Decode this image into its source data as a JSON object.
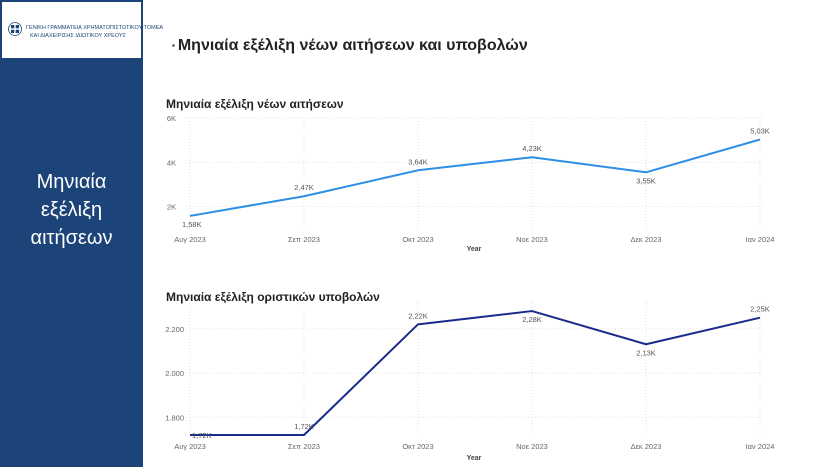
{
  "sidebar": {
    "logo_line1": "ΓΕΝΙΚΗ ΓΡΑΜΜΑΤΕΙΑ ΧΡΗΜΑΤΟΠΙΣΤΩΤΙΚΟΥ ΤΟΜΕΑ",
    "logo_line2": "ΚΑΙ ΔΙΑΧΕΙΡΙΣΗΣ ΙΔΙΩΤΙΚΟΥ ΧΡΕΟΥΣ",
    "title_lines": [
      "Μηνιαία",
      "εξέλιξη",
      "αιτήσεων"
    ],
    "bg_color": "#1d4478"
  },
  "page_title": "Μηνιαία εξέλιξη νέων αιτήσεων και υποβολών",
  "chart_data": [
    {
      "type": "line",
      "title": "Μηνιαία εξέλιξη νέων αιτήσεων",
      "xlabel": "Year",
      "ylabel": "",
      "categories": [
        "Αυγ 2023",
        "Σεπ 2023",
        "Οκτ 2023",
        "Νοε 2023",
        "Δεκ 2023",
        "Ιαν 2024"
      ],
      "values": [
        1580,
        2470,
        3640,
        4230,
        3550,
        5030
      ],
      "data_labels": [
        "1,58K",
        "2,47K",
        "3,64K",
        "4,23K",
        "3,55K",
        "5,03K"
      ],
      "ylim": [
        900,
        6000
      ],
      "yticks": [
        2000,
        4000,
        6000
      ],
      "ytick_labels": [
        "2K",
        "4K",
        "6K"
      ],
      "color": "#2e8ee6",
      "grid": true
    },
    {
      "type": "line",
      "title": "Μηνιαία εξέλιξη οριστικών υποβολών",
      "xlabel": "Year",
      "ylabel": "",
      "categories": [
        "Αυγ 2023",
        "Σεπ 2023",
        "Οκτ 2023",
        "Νοε 2023",
        "Δεκ 2023",
        "Ιαν 2024"
      ],
      "values": [
        1720,
        1720,
        2220,
        2280,
        2130,
        2250
      ],
      "data_labels": [
        "1,72K",
        "1,72K",
        "2,22K",
        "2,28K",
        "2,13K",
        "2,25K"
      ],
      "ylim": [
        1720,
        2330
      ],
      "yticks": [
        1800,
        2000,
        2200
      ],
      "ytick_labels": [
        "1.800",
        "2.000",
        "2.200"
      ],
      "color": "#1a2a8c",
      "grid": true
    }
  ]
}
